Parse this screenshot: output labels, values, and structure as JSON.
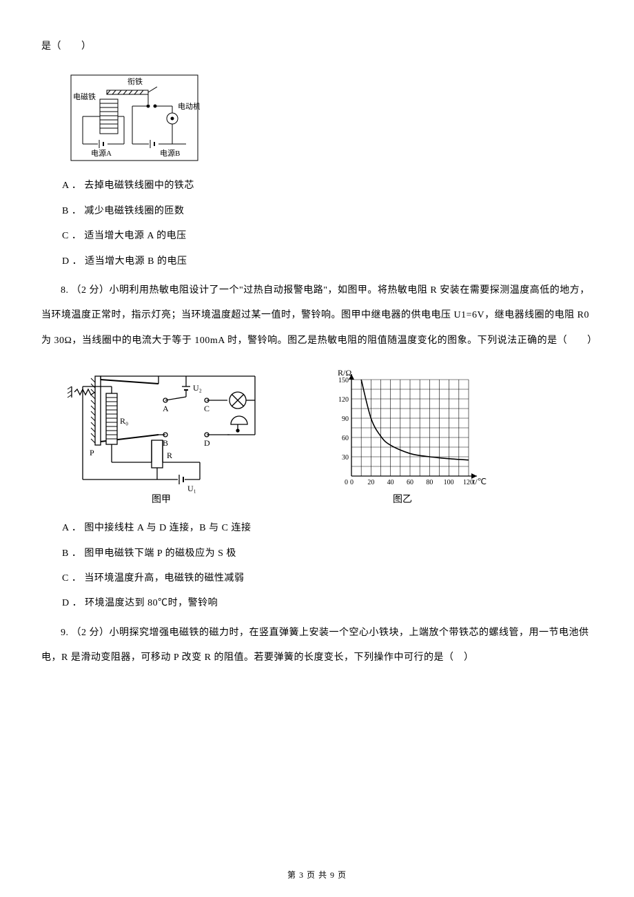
{
  "page": {
    "footer": "第 3 页 共 9 页",
    "text_color": "#000000",
    "bg_color": "#ffffff",
    "base_fontsize": 14
  },
  "frag_top": "是（　　）",
  "fig1": {
    "labels": {
      "armature": "衔铁",
      "electromagnet": "电磁铁",
      "motor": "电动机",
      "sourceA": "电源A",
      "sourceB": "电源B"
    },
    "stroke": "#000000",
    "fill": "#ffffff",
    "label_fontsize": 11
  },
  "q7_opts": {
    "A": "A ． 去掉电磁铁线圈中的铁芯",
    "B": "B ． 减少电磁铁线圈的匝数",
    "C": "C ． 适当增大电源 A 的电压",
    "D": "D ． 适当增大电源 B 的电压"
  },
  "q8": {
    "stem": "8.  （2 分）小明利用热敏电阻设计了一个\"过热自动报警电路\"，如图甲。将热敏电阻 R 安装在需要探测温度高低的地方，当环境温度正常时，指示灯亮；当环境温度超过某一值时，警铃响。图甲中继电器的供电电压 U1=6V，继电器线圈的电阻 R0 为 30Ω，当线圈中的电流大于等于 100mA 时，警铃响。图乙是热敏电阻的阻值随温度变化的图象。下列说法正确的是（　　）",
    "opts": {
      "A": "A ． 图中接线柱 A 与 D 连接，B 与 C 连接",
      "B": "B ． 图甲电磁铁下端 P 的磁极应为 S 极",
      "C": "C ． 当环境温度升高，电磁铁的磁性减弱",
      "D": "D ． 环境温度达到 80℃时，警铃响"
    }
  },
  "fig2a": {
    "labels": {
      "U2": "U₂",
      "A": "A",
      "C": "C",
      "B": "B",
      "D": "D",
      "R": "R",
      "R0": "R₀",
      "P": "P",
      "U1": "U₁",
      "cap": "图甲"
    },
    "stroke": "#000000",
    "label_fontsize": 12,
    "cap_fontsize": 14
  },
  "fig2b": {
    "type": "line",
    "cap": "图乙",
    "xlabel": "t/℃",
    "ylabel": "R/Ω",
    "xlim": [
      0,
      120
    ],
    "ylim": [
      0,
      150
    ],
    "xtick_step": 20,
    "ytick_step": 30,
    "xticks": [
      0,
      20,
      40,
      60,
      80,
      100,
      120
    ],
    "yticks": [
      0,
      30,
      60,
      90,
      120,
      150
    ],
    "data": [
      {
        "t": 10,
        "r": 150
      },
      {
        "t": 20,
        "r": 90
      },
      {
        "t": 30,
        "r": 62
      },
      {
        "t": 40,
        "r": 48
      },
      {
        "t": 60,
        "r": 35
      },
      {
        "t": 80,
        "r": 30
      },
      {
        "t": 100,
        "r": 27
      },
      {
        "t": 120,
        "r": 25
      }
    ],
    "grid_color": "#000000",
    "curve_color": "#000000",
    "curve_width": 1.6,
    "label_fontsize": 12,
    "tick_fontsize": 10,
    "cap_fontsize": 14
  },
  "q9": {
    "stem": "9.   （2 分）小明探究增强电磁铁的磁力时，在竖直弹簧上安装一个空心小铁块，上端放个带铁芯的螺线管，用一节电池供电，R  是滑动变阻器，可移动  P  改变  R  的阻值。若要弹簧的长度变长，下列操作中可行的是（　）"
  }
}
